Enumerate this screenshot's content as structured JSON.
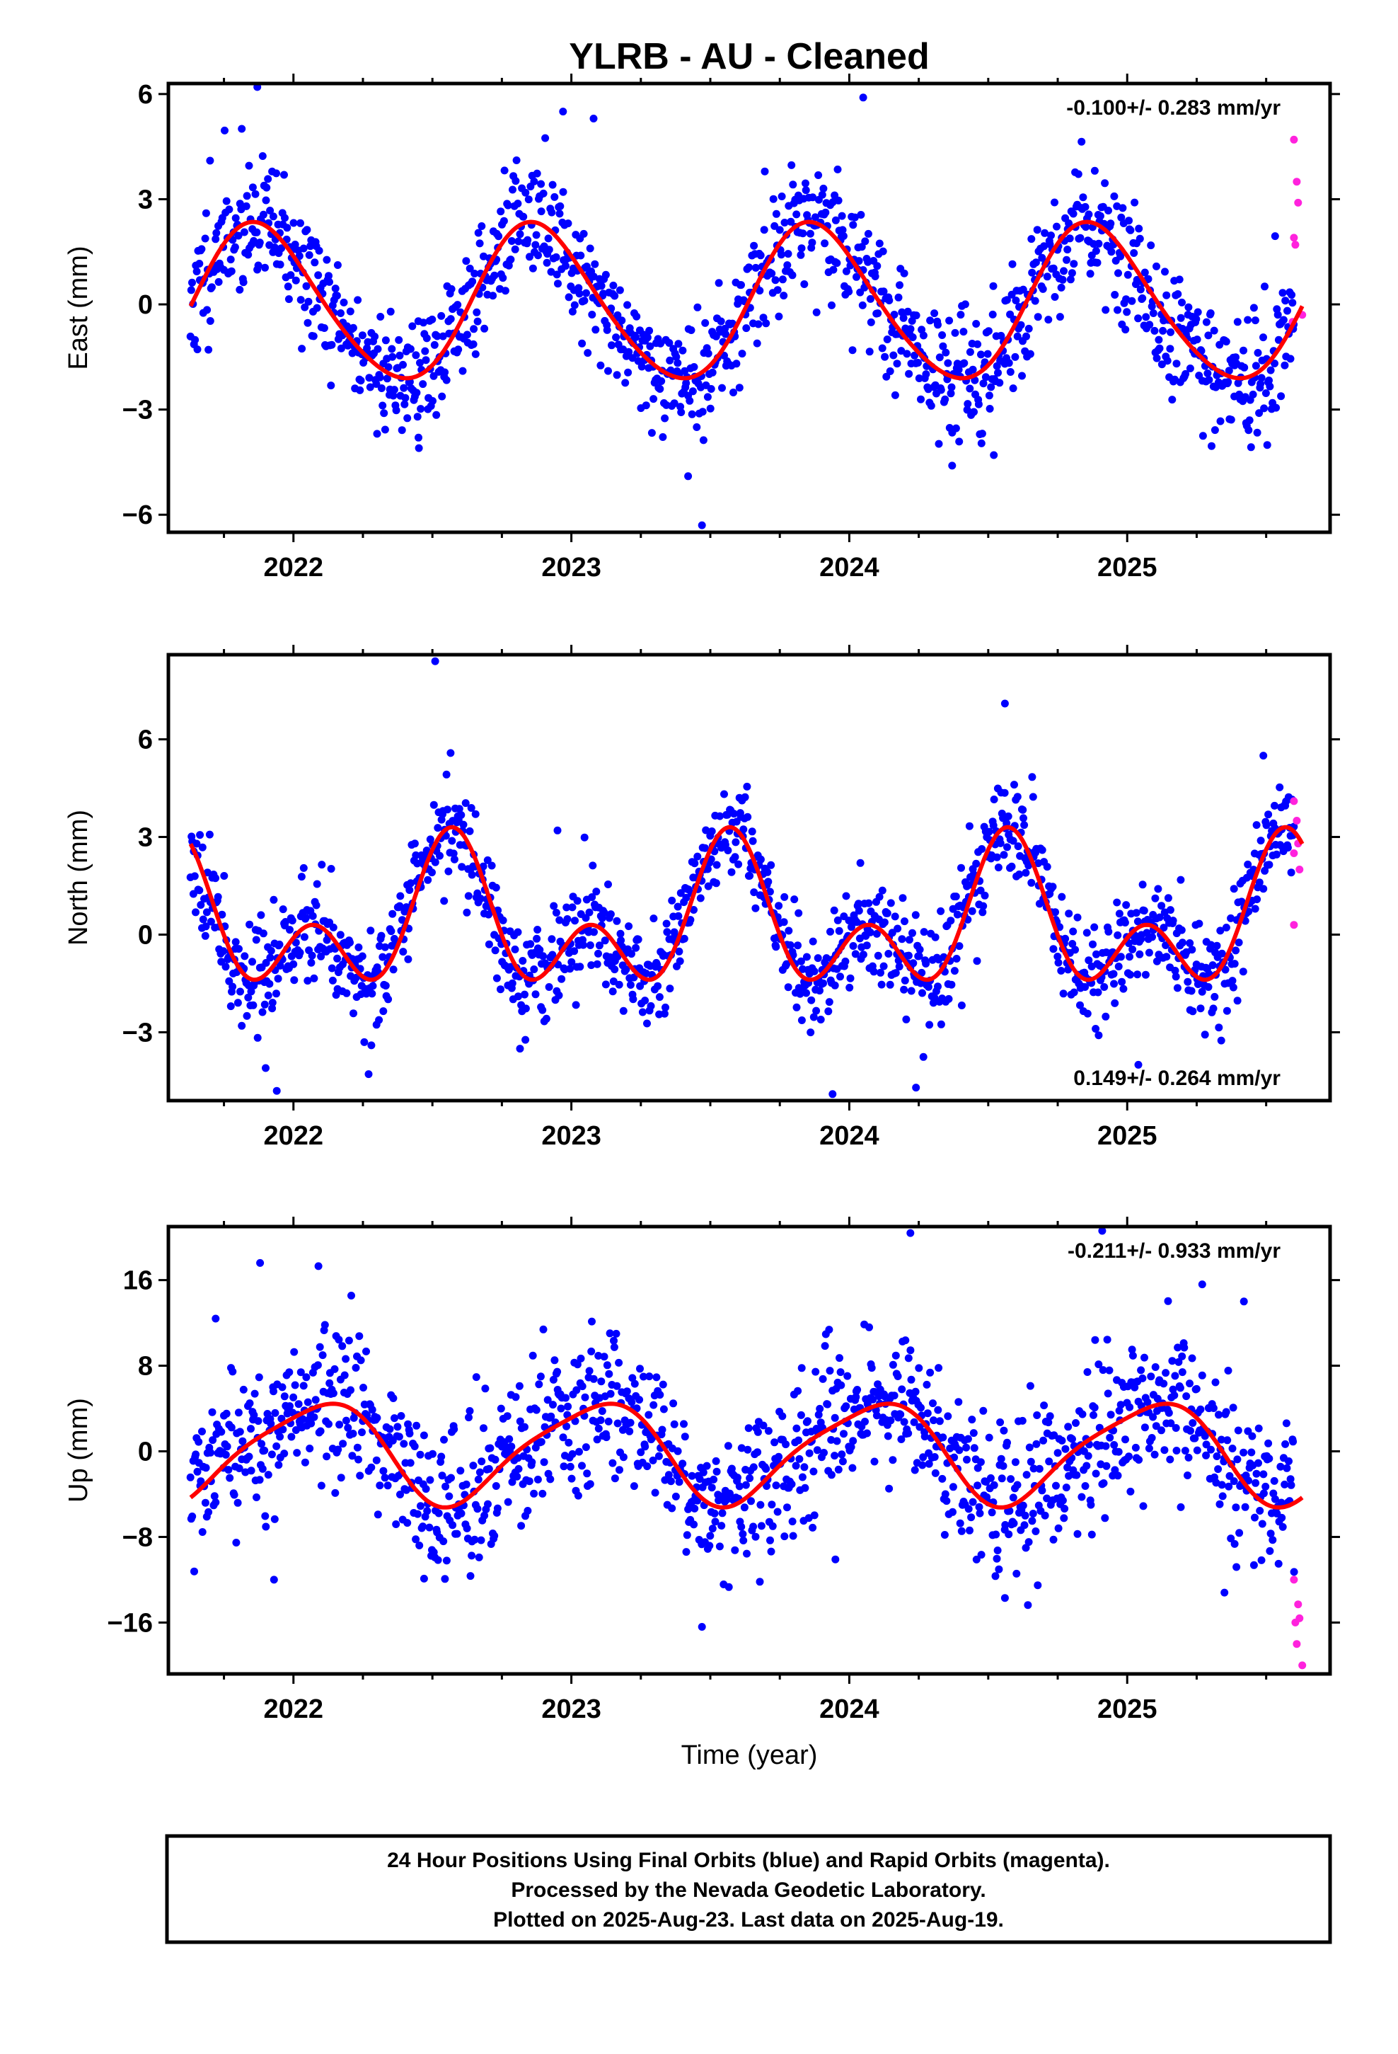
{
  "title": "YLRB  - AU - Cleaned",
  "xlabel": "Time (year)",
  "footer_lines": [
    "24 Hour Positions Using Final Orbits (blue) and Rapid Orbits (magenta).",
    "Processed by the Nevada Geodetic Laboratory.",
    "Plotted on 2025-Aug-23. Last data on 2025-Aug-19."
  ],
  "colors": {
    "final_orbits": "#0000ff",
    "rapid_orbits": "#ff22dd",
    "model_fit": "#ff0000",
    "frame": "#000000"
  },
  "chart_data": [
    {
      "type": "scatter",
      "panel": "east",
      "ylabel": "East (mm)",
      "rate": "-0.100+/- 0.283 mm/yr",
      "rate_position": "top-right",
      "xlim": [
        2021.55,
        2025.73
      ],
      "ylim": [
        -6.5,
        6.3
      ],
      "xticks": [
        2022,
        2023,
        2024,
        2025
      ],
      "xtick_labels": [
        "2022",
        "2023",
        "2024",
        "2025"
      ],
      "yticks": [
        -6,
        -3,
        0,
        3,
        6
      ],
      "ytick_labels": [
        "−6",
        "−3",
        "0",
        "3",
        "6"
      ],
      "model": {
        "amp1": 2.2,
        "peak1": 0.875,
        "amp2": 0.22,
        "peak2": 0.3,
        "offset": 0.0
      },
      "scatter": {
        "sigma": 0.9,
        "seed": 11,
        "count": 1290
      },
      "series": [
        {
          "name": "Final Orbits",
          "color": "#0000ff",
          "outliers": [
            [
              2021.87,
              6.2
            ],
            [
              2022.97,
              5.5
            ],
            [
              2023.08,
              5.3
            ],
            [
              2024.05,
              5.9
            ],
            [
              2023.47,
              -6.3
            ],
            [
              2023.42,
              -4.9
            ],
            [
              2024.37,
              -4.6
            ],
            [
              2022.45,
              -3.8
            ],
            [
              2024.52,
              -4.3
            ],
            [
              2021.7,
              4.1
            ]
          ]
        },
        {
          "name": "Rapid Orbits",
          "color": "#ff22dd",
          "points": [
            [
              2025.6,
              4.7
            ],
            [
              2025.61,
              3.5
            ],
            [
              2025.615,
              2.9
            ],
            [
              2025.6,
              1.9
            ],
            [
              2025.605,
              1.7
            ],
            [
              2025.595,
              -0.5
            ],
            [
              2025.63,
              -0.3
            ]
          ]
        }
      ]
    },
    {
      "type": "scatter",
      "panel": "north",
      "ylabel": "North (mm)",
      "rate": "0.149+/- 0.264 mm/yr",
      "rate_position": "bottom-right",
      "xlim": [
        2021.55,
        2025.73
      ],
      "ylim": [
        -5.1,
        8.6
      ],
      "xticks": [
        2022,
        2023,
        2024,
        2025
      ],
      "xtick_labels": [
        "2022",
        "2023",
        "2024",
        "2025"
      ],
      "yticks": [
        -3,
        0,
        3,
        6
      ],
      "ytick_labels": [
        "−3",
        "0",
        "3",
        "6"
      ],
      "model": {
        "amp1": 1.5,
        "peak1": 0.57,
        "amp2": 1.5,
        "peak2": 0.57,
        "offset": 0.3
      },
      "scatter": {
        "sigma": 0.8,
        "seed": 23,
        "count": 1290
      },
      "series": [
        {
          "name": "Final Orbits",
          "color": "#0000ff",
          "outliers": [
            [
              2022.51,
              8.4
            ],
            [
              2024.56,
              7.1
            ],
            [
              2025.49,
              5.5
            ],
            [
              2021.94,
              -4.8
            ],
            [
              2023.94,
              -4.9
            ],
            [
              2024.24,
              -4.7
            ],
            [
              2025.04,
              -4.0
            ],
            [
              2021.9,
              -4.1
            ],
            [
              2022.95,
              3.2
            ],
            [
              2024.04,
              2.2
            ]
          ]
        },
        {
          "name": "Rapid Orbits",
          "color": "#ff22dd",
          "points": [
            [
              2025.6,
              4.1
            ],
            [
              2025.61,
              3.5
            ],
            [
              2025.6,
              2.5
            ],
            [
              2025.615,
              2.8
            ],
            [
              2025.62,
              2.0
            ],
            [
              2025.6,
              0.3
            ]
          ]
        }
      ]
    },
    {
      "type": "scatter",
      "panel": "up",
      "ylabel": "Up (mm)",
      "rate": "-0.211+/- 0.933 mm/yr",
      "rate_position": "top-right",
      "xlim": [
        2021.55,
        2025.73
      ],
      "ylim": [
        -20.8,
        21.0
      ],
      "xticks": [
        2022,
        2023,
        2024,
        2025
      ],
      "xtick_labels": [
        "2022",
        "2023",
        "2024",
        "2025"
      ],
      "yticks": [
        -16,
        -8,
        0,
        8,
        16
      ],
      "ytick_labels": [
        "−16",
        "−8",
        "0",
        "8",
        "16"
      ],
      "model": {
        "amp1": 4.6,
        "peak1": 0.08,
        "amp2": 0.9,
        "peak2": 0.25,
        "offset": 0.0
      },
      "scatter": {
        "sigma": 3.5,
        "seed": 37,
        "count": 1290
      },
      "series": [
        {
          "name": "Final Orbits",
          "color": "#0000ff",
          "outliers": [
            [
              2021.88,
              17.6
            ],
            [
              2022.09,
              17.3
            ],
            [
              2024.22,
              20.4
            ],
            [
              2024.91,
              20.6
            ],
            [
              2025.27,
              15.6
            ],
            [
              2025.42,
              14.0
            ],
            [
              2023.47,
              -16.4
            ],
            [
              2021.93,
              -12.0
            ],
            [
              2022.47,
              -11.9
            ],
            [
              2024.56,
              -13.7
            ],
            [
              2025.35,
              -13.2
            ],
            [
              2021.72,
              12.4
            ],
            [
              2023.95,
              -10.1
            ]
          ]
        },
        {
          "name": "Rapid Orbits",
          "color": "#ff22dd",
          "points": [
            [
              2025.6,
              -12.0
            ],
            [
              2025.615,
              -14.3
            ],
            [
              2025.62,
              -15.6
            ],
            [
              2025.605,
              -16.0
            ],
            [
              2025.61,
              -18.0
            ],
            [
              2025.63,
              -20.0
            ]
          ]
        }
      ]
    }
  ]
}
